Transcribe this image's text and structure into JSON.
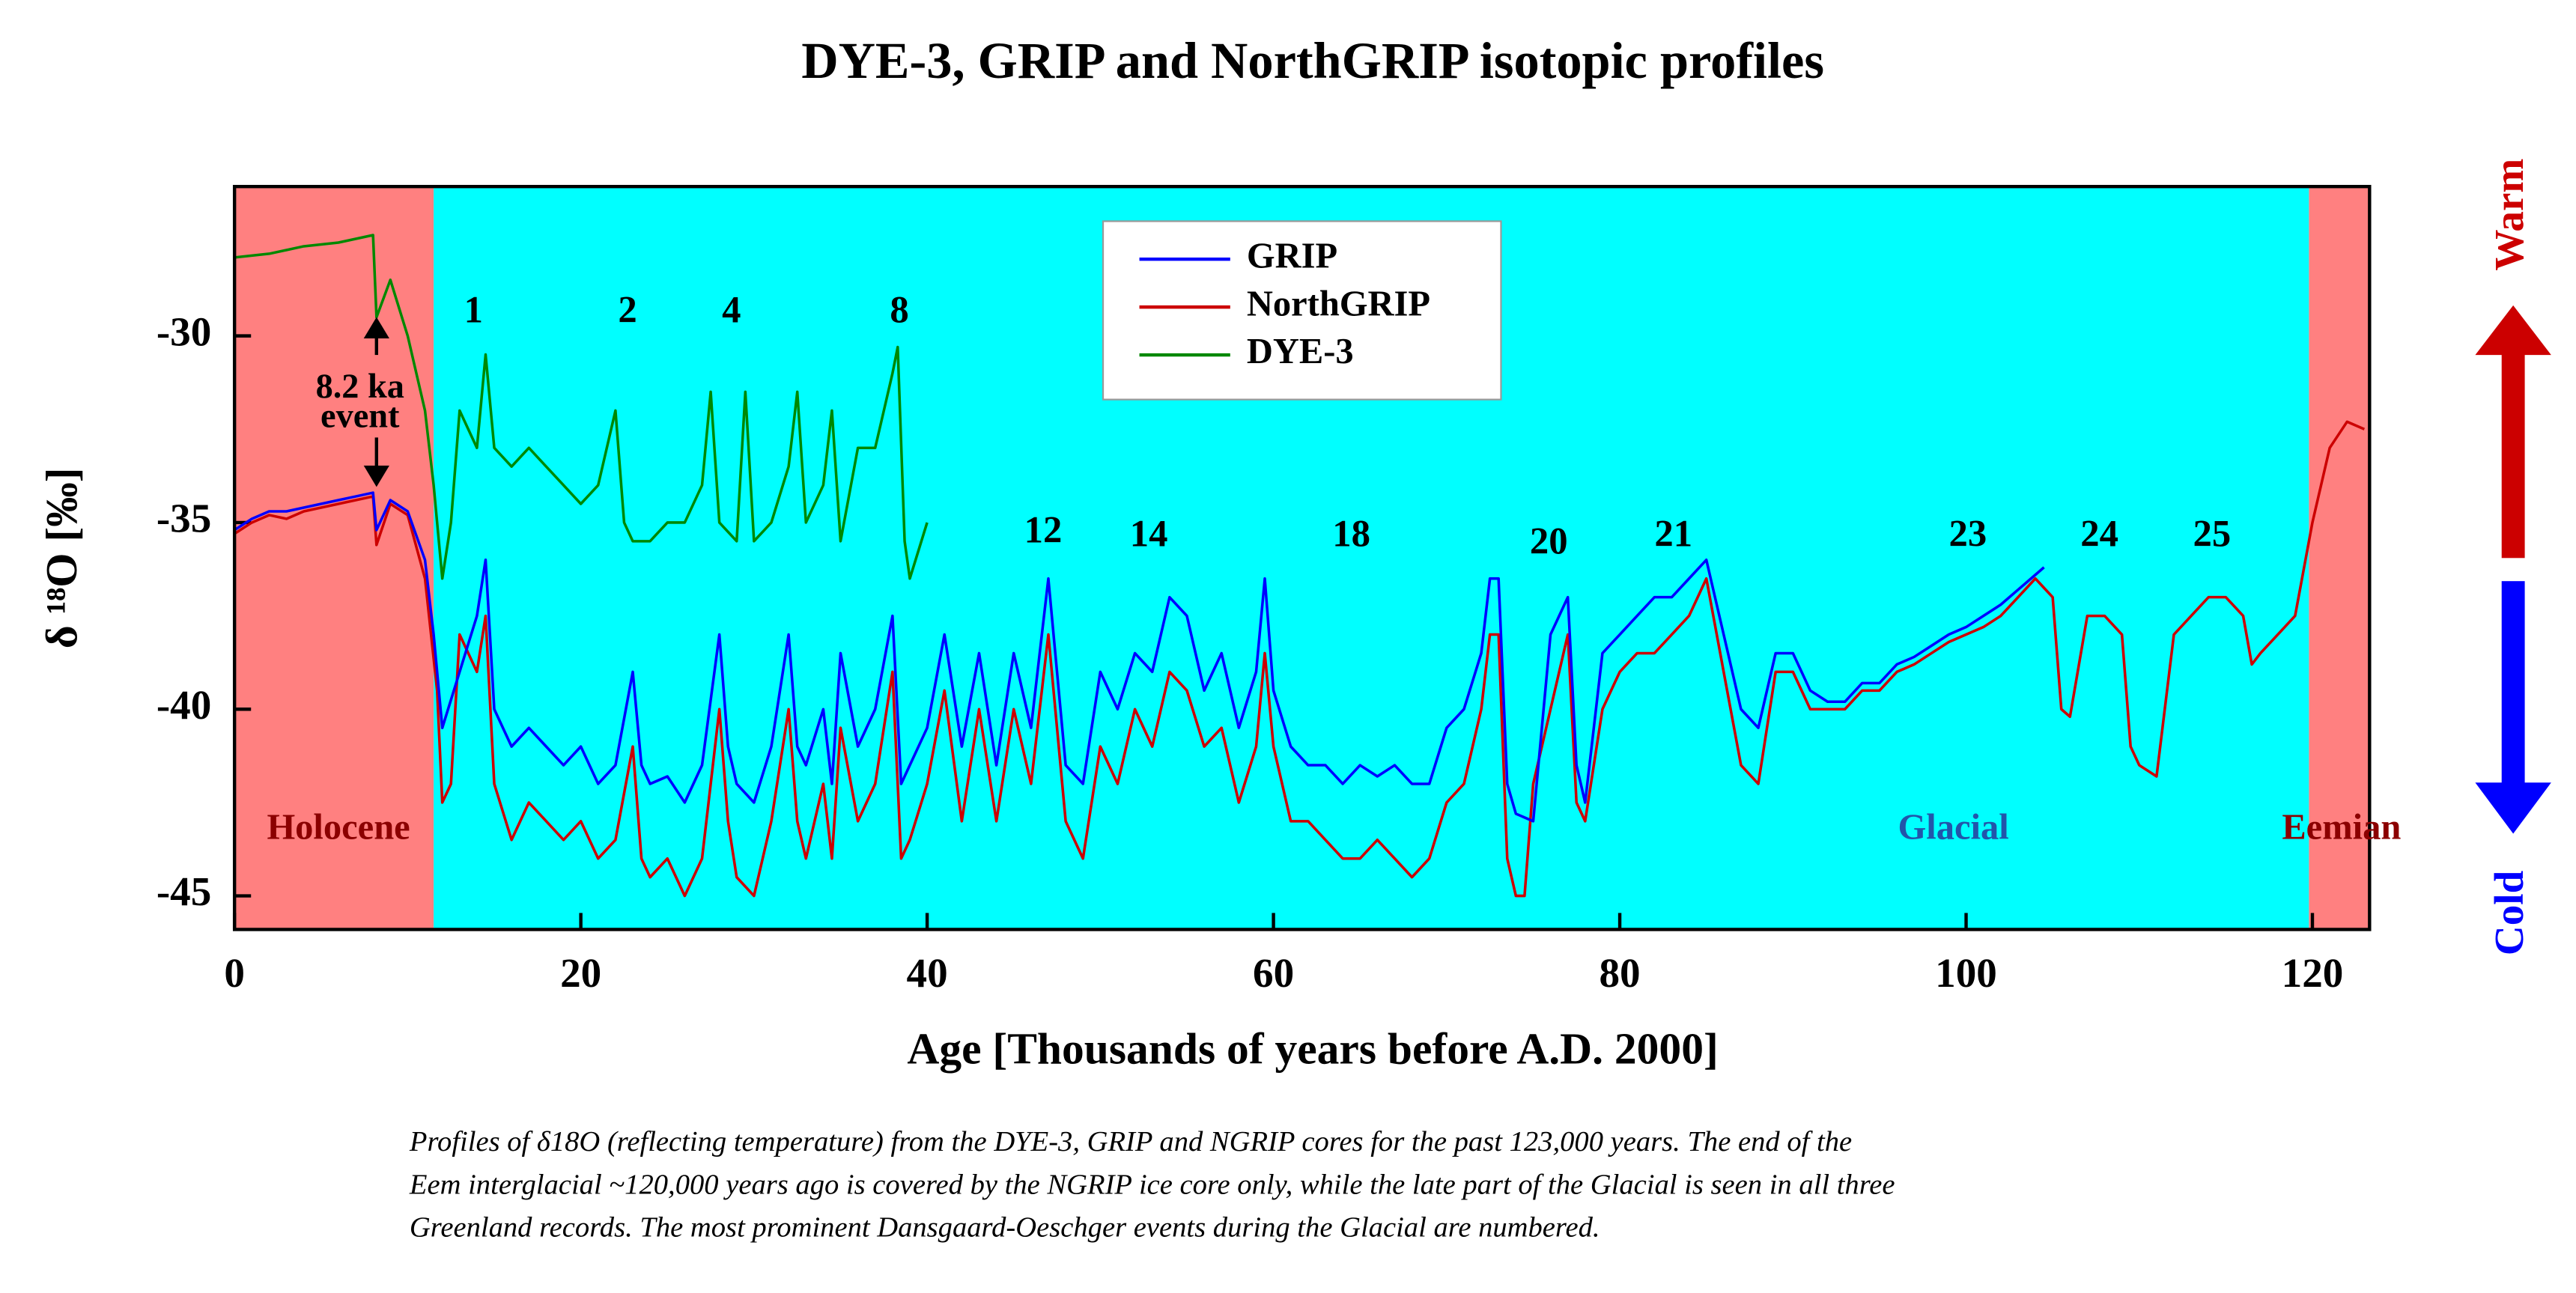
{
  "chart_data": {
    "type": "line",
    "title": "DYE-3, GRIP and NorthGRIP isotopic profiles",
    "xlabel": "Age [Thousands of years before A.D. 2000]",
    "ylabel": "δ ¹⁸O [‰]",
    "xlim": [
      0,
      123.3
    ],
    "xticks": [
      0,
      20,
      40,
      60,
      80,
      100,
      120
    ],
    "ylim": [
      -45.9,
      -26
    ],
    "yticks": [
      -30,
      -35,
      -40,
      -45
    ],
    "legend": "top-center",
    "regions": [
      {
        "label": "Holocene",
        "start": 0,
        "end": 11.5,
        "color": "#ff8080",
        "text_color": "#8b0000"
      },
      {
        "label": "Glacial",
        "start": 11.5,
        "end": 119.8,
        "color": "#00ffff",
        "text_color": "#2255aa"
      },
      {
        "label": "Eemian",
        "start": 119.8,
        "end": 123.3,
        "color": "#ff8080",
        "text_color": "#8b0000"
      }
    ],
    "series": [
      {
        "name": "GRIP",
        "color": "#0000ff",
        "x": [
          0,
          1,
          2,
          3,
          4,
          5,
          6,
          7,
          8,
          8.2,
          9,
          10,
          11,
          11.5,
          12,
          13,
          14,
          14.5,
          15,
          16,
          17,
          18,
          19,
          20,
          21,
          22,
          23,
          23.5,
          24,
          25,
          26,
          27,
          28,
          28.5,
          29,
          30,
          31,
          32,
          32.5,
          33,
          34,
          34.5,
          35,
          36,
          37,
          38,
          38.5,
          39,
          40,
          41,
          42,
          43,
          44,
          45,
          46,
          47,
          48,
          49,
          50,
          51,
          52,
          53,
          54,
          55,
          56,
          57,
          58,
          59,
          59.5,
          60,
          61,
          62,
          63,
          64,
          65,
          66,
          67,
          68,
          69,
          70,
          71,
          72,
          72.5,
          73,
          73.5,
          74,
          75,
          76,
          77,
          77.5,
          78,
          79,
          80,
          81,
          82,
          83,
          84,
          85,
          86,
          87,
          88,
          89,
          90,
          91,
          92,
          93,
          94,
          95,
          96,
          97,
          98,
          99,
          100,
          101,
          102,
          103,
          104,
          104.5
        ],
        "values": [
          -35.2,
          -34.9,
          -34.7,
          -34.7,
          -34.6,
          -34.5,
          -34.4,
          -34.3,
          -34.2,
          -35.2,
          -34.4,
          -34.7,
          -36,
          -38,
          -40.5,
          -39,
          -37.5,
          -36,
          -40,
          -41,
          -40.5,
          -41,
          -41.5,
          -41,
          -42,
          -41.5,
          -39,
          -41.5,
          -42,
          -41.8,
          -42.5,
          -41.5,
          -38,
          -41,
          -42,
          -42.5,
          -41,
          -38,
          -41,
          -41.5,
          -40,
          -42,
          -38.5,
          -41,
          -40,
          -37.5,
          -42,
          -41.5,
          -40.5,
          -38,
          -41,
          -38.5,
          -41.5,
          -38.5,
          -40.5,
          -36.5,
          -41.5,
          -42,
          -39,
          -40,
          -38.5,
          -39,
          -37,
          -37.5,
          -39.5,
          -38.5,
          -40.5,
          -39,
          -36.5,
          -39.5,
          -41,
          -41.5,
          -41.5,
          -42,
          -41.5,
          -41.8,
          -41.5,
          -42,
          -42,
          -40.5,
          -40,
          -38.5,
          -36.5,
          -36.5,
          -42,
          -42.8,
          -43,
          -38,
          -37,
          -41.5,
          -42.5,
          -38.5,
          -38,
          -37.5,
          -37,
          -37,
          -36.5,
          -36,
          -38,
          -40,
          -40.5,
          -38.5,
          -38.5,
          -39.5,
          -39.8,
          -39.8,
          -39.3,
          -39.3,
          -38.8,
          -38.6,
          -38.3,
          -38,
          -37.8,
          -37.5,
          -37.2,
          -36.8,
          -36.4,
          -36.2
        ]
      },
      {
        "name": "NorthGRIP",
        "color": "#cc0000",
        "x": [
          0,
          1,
          2,
          3,
          4,
          5,
          6,
          7,
          8,
          8.2,
          9,
          10,
          11,
          11.7,
          12,
          12.5,
          13,
          14,
          14.5,
          15,
          16,
          17,
          18,
          19,
          20,
          21,
          22,
          23,
          23.5,
          24,
          25,
          26,
          27,
          28,
          28.5,
          29,
          30,
          31,
          32,
          32.5,
          33,
          34,
          34.5,
          35,
          36,
          37,
          38,
          38.5,
          39,
          40,
          41,
          42,
          43,
          44,
          45,
          46,
          47,
          48,
          49,
          50,
          51,
          52,
          53,
          54,
          55,
          56,
          57,
          58,
          59,
          59.5,
          60,
          61,
          62,
          63,
          64,
          65,
          66,
          67,
          68,
          69,
          70,
          71,
          72,
          72.5,
          73,
          73.5,
          74,
          74.5,
          75,
          76,
          77,
          77.5,
          78,
          79,
          80,
          81,
          82,
          83,
          84,
          85,
          86,
          87,
          88,
          89,
          90,
          91,
          92,
          93,
          94,
          95,
          96,
          97,
          98,
          99,
          100,
          101,
          102,
          103,
          104,
          105,
          105.5,
          106,
          107,
          108,
          109,
          109.5,
          110,
          111,
          112,
          113,
          114,
          115,
          116,
          116.5,
          117,
          118,
          119,
          120,
          121,
          122,
          123
        ],
        "values": [
          -35.3,
          -35,
          -34.8,
          -34.9,
          -34.7,
          -34.6,
          -34.5,
          -34.4,
          -34.3,
          -35.6,
          -34.5,
          -34.8,
          -36.5,
          -39.5,
          -42.5,
          -42,
          -38,
          -39,
          -37.5,
          -42,
          -43.5,
          -42.5,
          -43,
          -43.5,
          -43,
          -44,
          -43.5,
          -41,
          -44,
          -44.5,
          -44,
          -45,
          -44,
          -40,
          -43,
          -44.5,
          -45,
          -43,
          -40,
          -43,
          -44,
          -42,
          -44,
          -40.5,
          -43,
          -42,
          -39,
          -44,
          -43.5,
          -42,
          -39.5,
          -43,
          -40,
          -43,
          -40,
          -42,
          -38,
          -43,
          -44,
          -41,
          -42,
          -40,
          -41,
          -39,
          -39.5,
          -41,
          -40.5,
          -42.5,
          -41,
          -38.5,
          -41,
          -43,
          -43,
          -43.5,
          -44,
          -44,
          -43.5,
          -44,
          -44.5,
          -44,
          -42.5,
          -42,
          -40,
          -38,
          -38,
          -44,
          -45,
          -45,
          -42,
          -40,
          -38,
          -42.5,
          -43,
          -40,
          -39,
          -38.5,
          -38.5,
          -38,
          -37.5,
          -36.5,
          -39,
          -41.5,
          -42,
          -39,
          -39,
          -40,
          -40,
          -40,
          -39.5,
          -39.5,
          -39,
          -38.8,
          -38.5,
          -38.2,
          -38,
          -37.8,
          -37.5,
          -37,
          -36.5,
          -37,
          -40,
          -40.2,
          -37.5,
          -37.5,
          -38,
          -41,
          -41.5,
          -41.8,
          -38,
          -37.5,
          -37,
          -37,
          -37.5,
          -38.8,
          -38.5,
          -38,
          -37.5,
          -35,
          -33,
          -32.3,
          -32.5
        ]
      },
      {
        "name": "DYE-3",
        "color": "#008800",
        "x": [
          0,
          2,
          4,
          6,
          7,
          8,
          8.2,
          9,
          10,
          11,
          11.5,
          12,
          12.5,
          13,
          14,
          14.5,
          15,
          16,
          17,
          18,
          19,
          20,
          21,
          22,
          22.5,
          23,
          24,
          25,
          26,
          27,
          27.5,
          28,
          29,
          29.5,
          30,
          31,
          32,
          32.5,
          33,
          34,
          34.5,
          35,
          36,
          37,
          37.5,
          38,
          38.3,
          38.7,
          39,
          40
        ],
        "values": [
          -27.9,
          -27.8,
          -27.6,
          -27.5,
          -27.4,
          -27.3,
          -29.5,
          -28.5,
          -30,
          -32,
          -34,
          -36.5,
          -35,
          -32,
          -33,
          -30.5,
          -33,
          -33.5,
          -33,
          -33.5,
          -34,
          -34.5,
          -34,
          -32,
          -35,
          -35.5,
          -35.5,
          -35,
          -35,
          -34,
          -31.5,
          -35,
          -35.5,
          -31.5,
          -35.5,
          -35,
          -33.5,
          -31.5,
          -35,
          -34,
          -32,
          -35.5,
          -33,
          -33,
          -32,
          -31,
          -30.3,
          -35.5,
          -36.5,
          -35
        ]
      }
    ],
    "events": [
      {
        "text": "1",
        "x": 13.8,
        "y": -29.4
      },
      {
        "text": "2",
        "x": 22.7,
        "y": -29.4
      },
      {
        "text": "4",
        "x": 28.7,
        "y": -29.4
      },
      {
        "text": "8",
        "x": 38.4,
        "y": -29.4
      },
      {
        "text": "12",
        "x": 46.7,
        "y": -35.3
      },
      {
        "text": "14",
        "x": 52.8,
        "y": -35.4
      },
      {
        "text": "18",
        "x": 64.5,
        "y": -35.4
      },
      {
        "text": "20",
        "x": 75.9,
        "y": -35.6
      },
      {
        "text": "21",
        "x": 83.1,
        "y": -35.4
      },
      {
        "text": "23",
        "x": 100.1,
        "y": -35.4
      },
      {
        "text": "24",
        "x": 107.7,
        "y": -35.4
      },
      {
        "text": "25",
        "x": 114.2,
        "y": -35.4
      }
    ],
    "event_82": [
      "8.2 ka",
      "event"
    ],
    "warm": "Warm",
    "cold": "Cold",
    "caption": [
      "Profiles of δ18O (reflecting temperature) from the DYE-3, GRIP and NGRIP cores for the past 123,000 years. The end of the",
      "Eem interglacial ~120,000 years ago is covered by the NGRIP ice core only, while the late part of the Glacial is seen in all three",
      "Greenland records. The most prominent Dansgaard-Oeschger events during the Glacial are numbered."
    ]
  }
}
